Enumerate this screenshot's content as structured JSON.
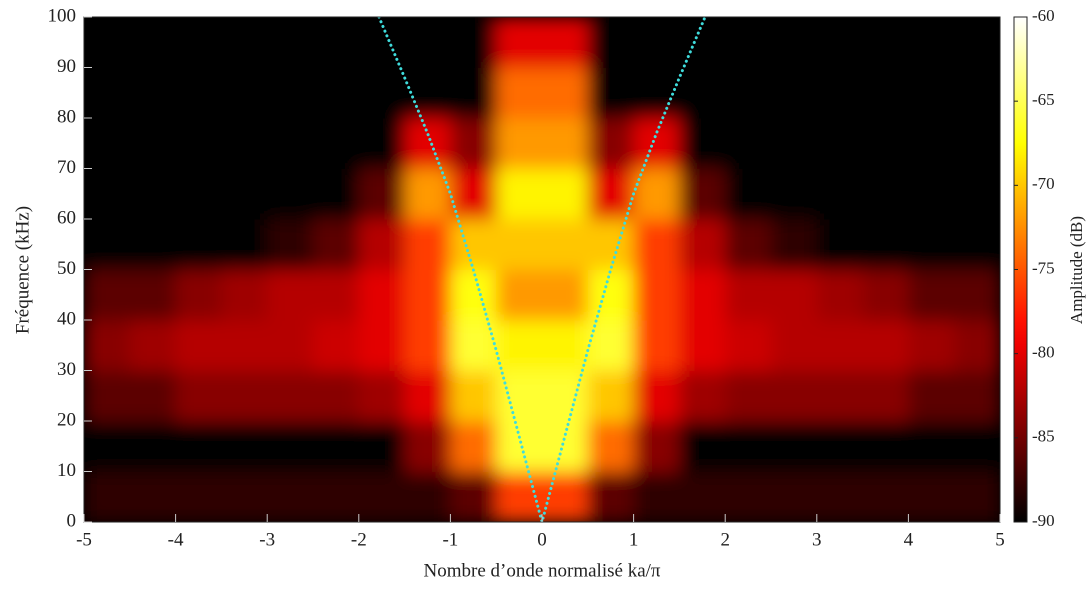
{
  "chart_data": {
    "type": "heatmap",
    "x_label": "Nombre d’onde normalisé ka/π",
    "y_label": "Fréquence (kHz)",
    "colorbar_label": "Amplitude (dB)",
    "colormap": "hot",
    "xlim": [
      -5,
      5
    ],
    "ylim": [
      0,
      100
    ],
    "xticks": [
      -5,
      -4,
      -3,
      -2,
      -1,
      0,
      1,
      2,
      3,
      4,
      5
    ],
    "yticks": [
      0,
      10,
      20,
      30,
      40,
      50,
      60,
      70,
      80,
      90,
      100
    ],
    "zlim": [
      -90,
      -60
    ],
    "zticks": [
      -90,
      -85,
      -80,
      -75,
      -70,
      -65,
      -60
    ],
    "x_bins": [
      -5,
      -4.5,
      -4,
      -3.5,
      -3,
      -2.5,
      -2,
      -1.5,
      -1,
      -0.5,
      0,
      0.5,
      1,
      1.5,
      2,
      2.5,
      3,
      3.5,
      4,
      4.5,
      5
    ],
    "y_bins": [
      0,
      10,
      20,
      30,
      40,
      50,
      60,
      70,
      80,
      90,
      100
    ],
    "z": [
      [
        -88,
        -88,
        -88,
        -88,
        -88,
        -88,
        -88,
        -88,
        -86,
        -76,
        -76,
        -86,
        -88,
        -88,
        -88,
        -88,
        -88,
        -88,
        -88,
        -88
      ],
      [
        -90,
        -90,
        -90,
        -90,
        -90,
        -90,
        -90,
        -84,
        -74,
        -66,
        -66,
        -74,
        -84,
        -90,
        -90,
        -90,
        -90,
        -90,
        -90,
        -90
      ],
      [
        -86,
        -86,
        -84,
        -84,
        -84,
        -84,
        -83,
        -80,
        -70,
        -66,
        -66,
        -70,
        -80,
        -83,
        -84,
        -84,
        -84,
        -84,
        -86,
        -86
      ],
      [
        -84,
        -83,
        -82,
        -82,
        -82,
        -81,
        -80,
        -76,
        -66,
        -68,
        -68,
        -66,
        -76,
        -80,
        -81,
        -82,
        -82,
        -82,
        -83,
        -84
      ],
      [
        -86,
        -86,
        -84,
        -83,
        -82,
        -82,
        -80,
        -76,
        -67,
        -72,
        -72,
        -67,
        -76,
        -80,
        -82,
        -82,
        -83,
        -84,
        -86,
        -86
      ],
      [
        -90,
        -90,
        -90,
        -90,
        -88,
        -86,
        -82,
        -76,
        -70,
        -70,
        -70,
        -70,
        -76,
        -82,
        -86,
        -88,
        -90,
        -90,
        -90,
        -90
      ],
      [
        -90,
        -90,
        -90,
        -90,
        -90,
        -90,
        -86,
        -72,
        -80,
        -68,
        -68,
        -80,
        -72,
        -86,
        -90,
        -90,
        -90,
        -90,
        -90,
        -90
      ],
      [
        -90,
        -90,
        -90,
        -90,
        -90,
        -90,
        -90,
        -80,
        -84,
        -72,
        -72,
        -84,
        -80,
        -90,
        -90,
        -90,
        -90,
        -90,
        -90,
        -90
      ],
      [
        -90,
        -90,
        -90,
        -90,
        -90,
        -90,
        -90,
        -90,
        -90,
        -74,
        -74,
        -90,
        -90,
        -90,
        -90,
        -90,
        -90,
        -90,
        -90,
        -90
      ],
      [
        -90,
        -90,
        -90,
        -90,
        -90,
        -90,
        -90,
        -90,
        -90,
        -80,
        -80,
        -90,
        -90,
        -90,
        -90,
        -90,
        -90,
        -90,
        -90,
        -90
      ]
    ],
    "curve": {
      "color": "#3fdcdc",
      "x": [
        -1.78,
        -1.5,
        -1.25,
        -1,
        -0.75,
        -0.5,
        -0.25,
        0,
        0.25,
        0.5,
        0.75,
        1,
        1.25,
        1.5,
        1.78
      ],
      "y": [
        100,
        88,
        77,
        65,
        50,
        34,
        17,
        0,
        17,
        34,
        50,
        65,
        77,
        88,
        100
      ]
    }
  }
}
